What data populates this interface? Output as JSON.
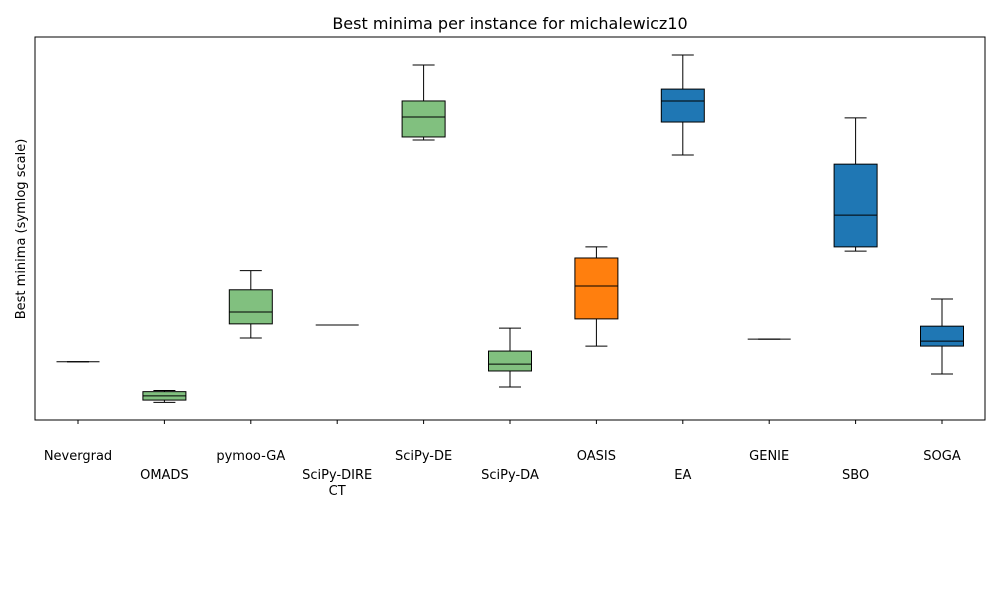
{
  "chart_data": {
    "type": "box",
    "title": "Best minima per instance for michalewicz10",
    "xlabel": "",
    "ylabel": "Best minima (symlog scale)",
    "y_scale": "symlog",
    "ylim": [
      0,
      100
    ],
    "y_tick_labels_shown": false,
    "colors": {
      "green": "#81c07f",
      "orange": "#ff7f0e",
      "blue": "#1f77b4",
      "line": "#000000"
    },
    "series": [
      {
        "name": "Nevergrad",
        "label_lines": [
          "Nevergrad"
        ],
        "row": 0,
        "color": null,
        "whisker_low": 15.2,
        "q1": 15.2,
        "median": 15.2,
        "q3": 15.2,
        "whisker_high": 15.2
      },
      {
        "name": "OMADS",
        "label_lines": [
          "OMADS"
        ],
        "row": 1,
        "color": "green",
        "whisker_low": 4.6,
        "q1": 5.2,
        "median": 6.3,
        "q3": 7.4,
        "whisker_high": 7.7
      },
      {
        "name": "pymoo-GA",
        "label_lines": [
          "pymoo-GA"
        ],
        "row": 0,
        "color": "green",
        "whisker_low": 21.4,
        "q1": 25.1,
        "median": 28.2,
        "q3": 34.0,
        "whisker_high": 39.0
      },
      {
        "name": "SciPy-DIRECT",
        "label_lines": [
          "SciPy-DIRE",
          "CT"
        ],
        "row": 1,
        "color": null,
        "whisker_low": 24.8,
        "q1": 24.8,
        "median": 24.8,
        "q3": 24.8,
        "whisker_high": 24.8
      },
      {
        "name": "SciPy-DE",
        "label_lines": [
          "SciPy-DE"
        ],
        "row": 0,
        "color": "green",
        "whisker_low": 73.1,
        "q1": 73.9,
        "median": 79.1,
        "q3": 83.3,
        "whisker_high": 92.7
      },
      {
        "name": "SciPy-DA",
        "label_lines": [
          "SciPy-DA"
        ],
        "row": 1,
        "color": "green",
        "whisker_low": 8.6,
        "q1": 12.8,
        "median": 14.6,
        "q3": 18.0,
        "whisker_high": 24.0
      },
      {
        "name": "OASIS",
        "label_lines": [
          "OASIS"
        ],
        "row": 0,
        "color": "orange",
        "whisker_low": 19.3,
        "q1": 26.4,
        "median": 35.0,
        "q3": 42.3,
        "whisker_high": 45.2
      },
      {
        "name": "EA",
        "label_lines": [
          "EA"
        ],
        "row": 1,
        "color": "blue",
        "whisker_low": 69.2,
        "q1": 77.8,
        "median": 83.3,
        "q3": 86.4,
        "whisker_high": 95.3
      },
      {
        "name": "GENIE",
        "label_lines": [
          "GENIE"
        ],
        "row": 0,
        "color": null,
        "whisker_low": 21.1,
        "q1": 21.1,
        "median": 21.1,
        "q3": 21.1,
        "whisker_high": 21.1
      },
      {
        "name": "SBO",
        "label_lines": [
          "SBO"
        ],
        "row": 1,
        "color": "blue",
        "whisker_low": 44.1,
        "q1": 45.2,
        "median": 53.5,
        "q3": 66.8,
        "whisker_high": 78.9
      },
      {
        "name": "SOGA",
        "label_lines": [
          "SOGA"
        ],
        "row": 0,
        "color": "blue",
        "whisker_low": 12.0,
        "q1": 19.3,
        "median": 20.6,
        "q3": 24.5,
        "whisker_high": 31.6
      }
    ]
  }
}
